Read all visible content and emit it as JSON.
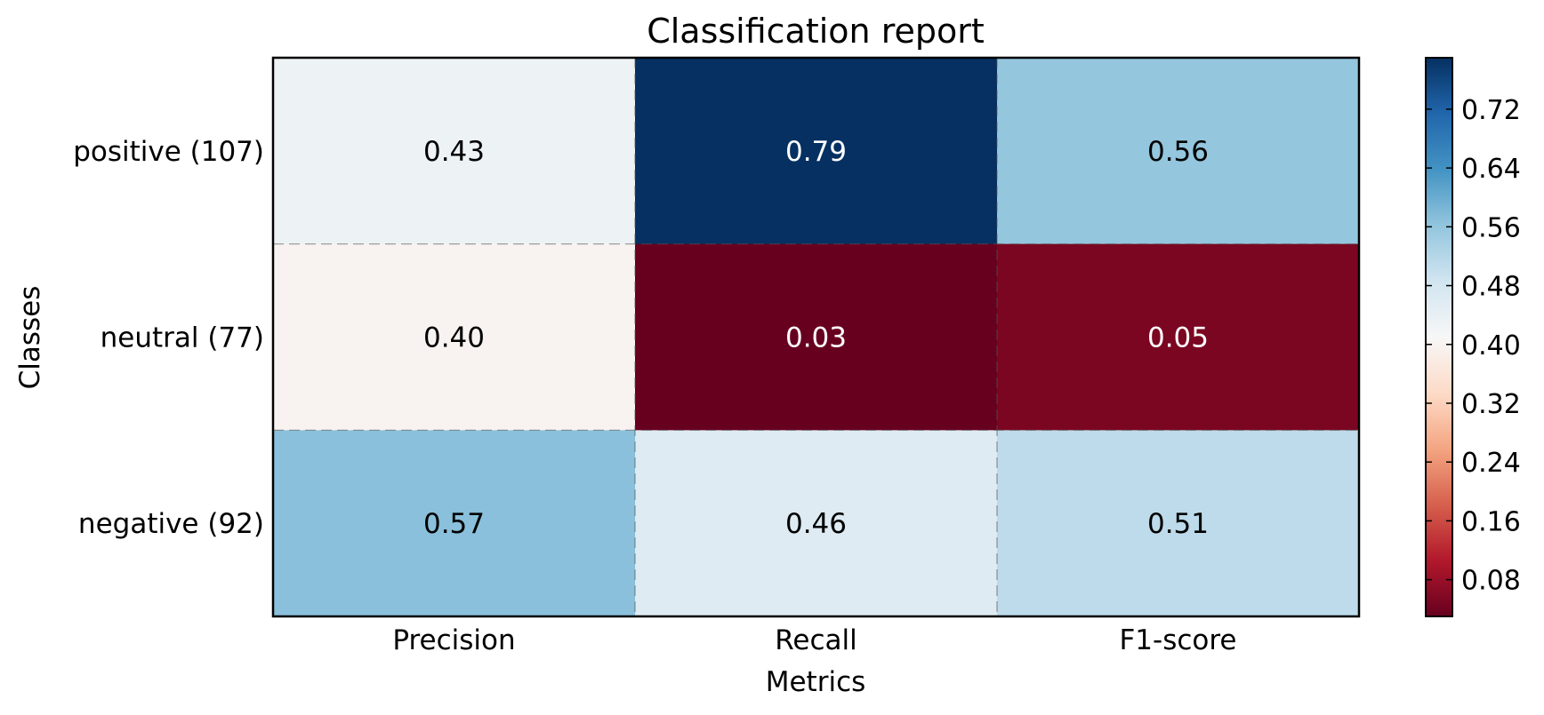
{
  "chart_data": {
    "type": "heatmap",
    "title": "Classification report",
    "xlabel": "Metrics",
    "ylabel": "Classes",
    "x_categories": [
      "Precision",
      "Recall",
      "F1-score"
    ],
    "y_categories": [
      "positive (107)",
      "neutral (77)",
      "negative (92)"
    ],
    "values": [
      [
        0.43,
        0.79,
        0.56
      ],
      [
        0.4,
        0.03,
        0.05
      ],
      [
        0.57,
        0.46,
        0.51
      ]
    ],
    "cell_labels": [
      [
        "0.43",
        "0.79",
        "0.56"
      ],
      [
        "0.40",
        "0.03",
        "0.05"
      ],
      [
        "0.57",
        "0.46",
        "0.51"
      ]
    ],
    "colormap": "RdBu",
    "color_range": [
      0.03,
      0.79
    ],
    "colorbar": {
      "ticks": [
        0.08,
        0.16,
        0.24,
        0.32,
        0.4,
        0.48,
        0.56,
        0.64,
        0.72
      ],
      "tick_labels": [
        "0.08",
        "0.16",
        "0.24",
        "0.32",
        "0.40",
        "0.48",
        "0.56",
        "0.64",
        "0.72"
      ]
    },
    "grid": "dashed"
  }
}
